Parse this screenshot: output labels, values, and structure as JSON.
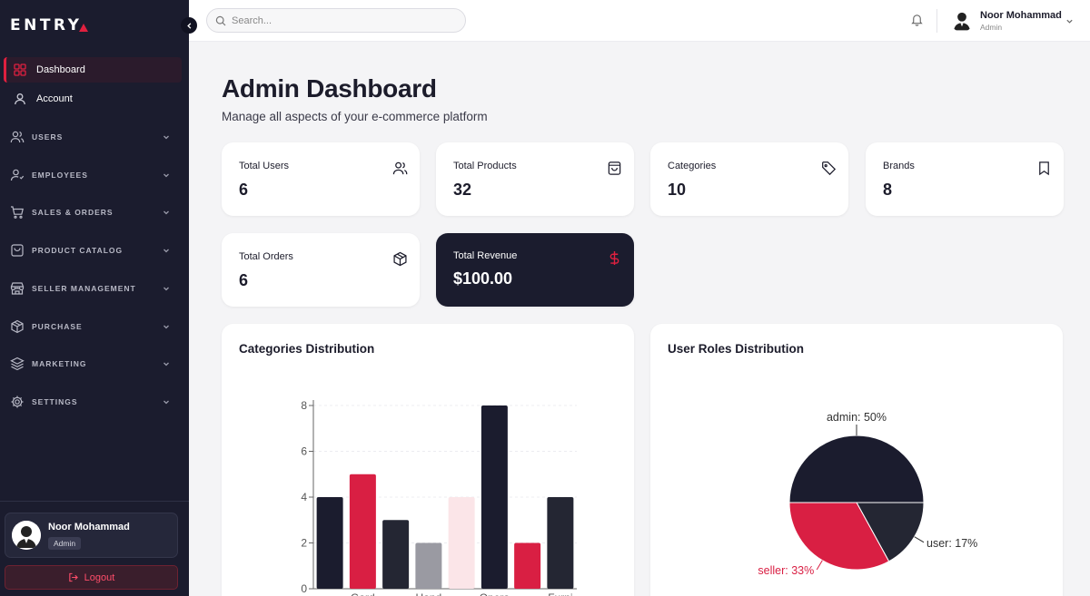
{
  "brand": {
    "logo_text": "ENTRY",
    "accent": "#e0203f",
    "dark": "#1b1c2e"
  },
  "sidebar": {
    "collapse_icon": "chevron-left-icon",
    "items": [
      {
        "label": "Dashboard",
        "icon": "grid-icon",
        "active": true
      },
      {
        "label": "Account",
        "icon": "user-icon",
        "active": false
      }
    ],
    "groups": [
      {
        "label": "USERS",
        "icon": "users-icon"
      },
      {
        "label": "EMPLOYEES",
        "icon": "employee-icon"
      },
      {
        "label": "SALES & ORDERS",
        "icon": "cart-icon"
      },
      {
        "label": "PRODUCT CATALOG",
        "icon": "catalog-icon"
      },
      {
        "label": "SELLER MANAGEMENT",
        "icon": "store-icon"
      },
      {
        "label": "PURCHASE",
        "icon": "package-icon"
      },
      {
        "label": "MARKETING",
        "icon": "layers-icon"
      },
      {
        "label": "SETTINGS",
        "icon": "gear-icon"
      }
    ],
    "user": {
      "name": "Noor Mohammad",
      "role": "Admin"
    },
    "logout_label": "Logout"
  },
  "topbar": {
    "search_placeholder": "Search...",
    "user": {
      "name": "Noor Mohammad",
      "role": "Admin"
    }
  },
  "page": {
    "title": "Admin Dashboard",
    "subtitle": "Manage all aspects of your e-commerce platform"
  },
  "stats": [
    {
      "label": "Total Users",
      "value": "6",
      "icon": "users-icon"
    },
    {
      "label": "Total Products",
      "value": "32",
      "icon": "shopping-bag-icon"
    },
    {
      "label": "Categories",
      "value": "10",
      "icon": "tag-icon"
    },
    {
      "label": "Brands",
      "value": "8",
      "icon": "bookmark-icon"
    },
    {
      "label": "Total Orders",
      "value": "6",
      "icon": "box-icon"
    },
    {
      "label": "Total Revenue",
      "value": "$100.00",
      "icon": "dollar-icon"
    }
  ],
  "charts": {
    "categories_title": "Categories Distribution",
    "roles_title": "User Roles Distribution"
  },
  "chart_data": [
    {
      "type": "bar",
      "title": "Categories Distribution",
      "categories": [
        "",
        "Gard",
        "",
        "Hand",
        "",
        "Opera",
        "",
        "Furni"
      ],
      "values": [
        4,
        5,
        3,
        2,
        4,
        8,
        2,
        4
      ],
      "colors": [
        "#1b1c2e",
        "#d91f43",
        "#242633",
        "#9a9aa2",
        "#fbe5e8",
        "#1b1c2e",
        "#d91f43",
        "#242633"
      ],
      "ylim": [
        0,
        8
      ],
      "yticks": [
        0,
        2,
        4,
        6,
        8
      ],
      "grid": true
    },
    {
      "type": "pie",
      "title": "User Roles Distribution",
      "slices": [
        {
          "label": "admin: 50%",
          "value": 50,
          "color": "#1b1c2e"
        },
        {
          "label": "user: 17%",
          "value": 17,
          "color": "#242633"
        },
        {
          "label": "seller: 33%",
          "value": 33,
          "color": "#d91f43"
        }
      ]
    }
  ]
}
